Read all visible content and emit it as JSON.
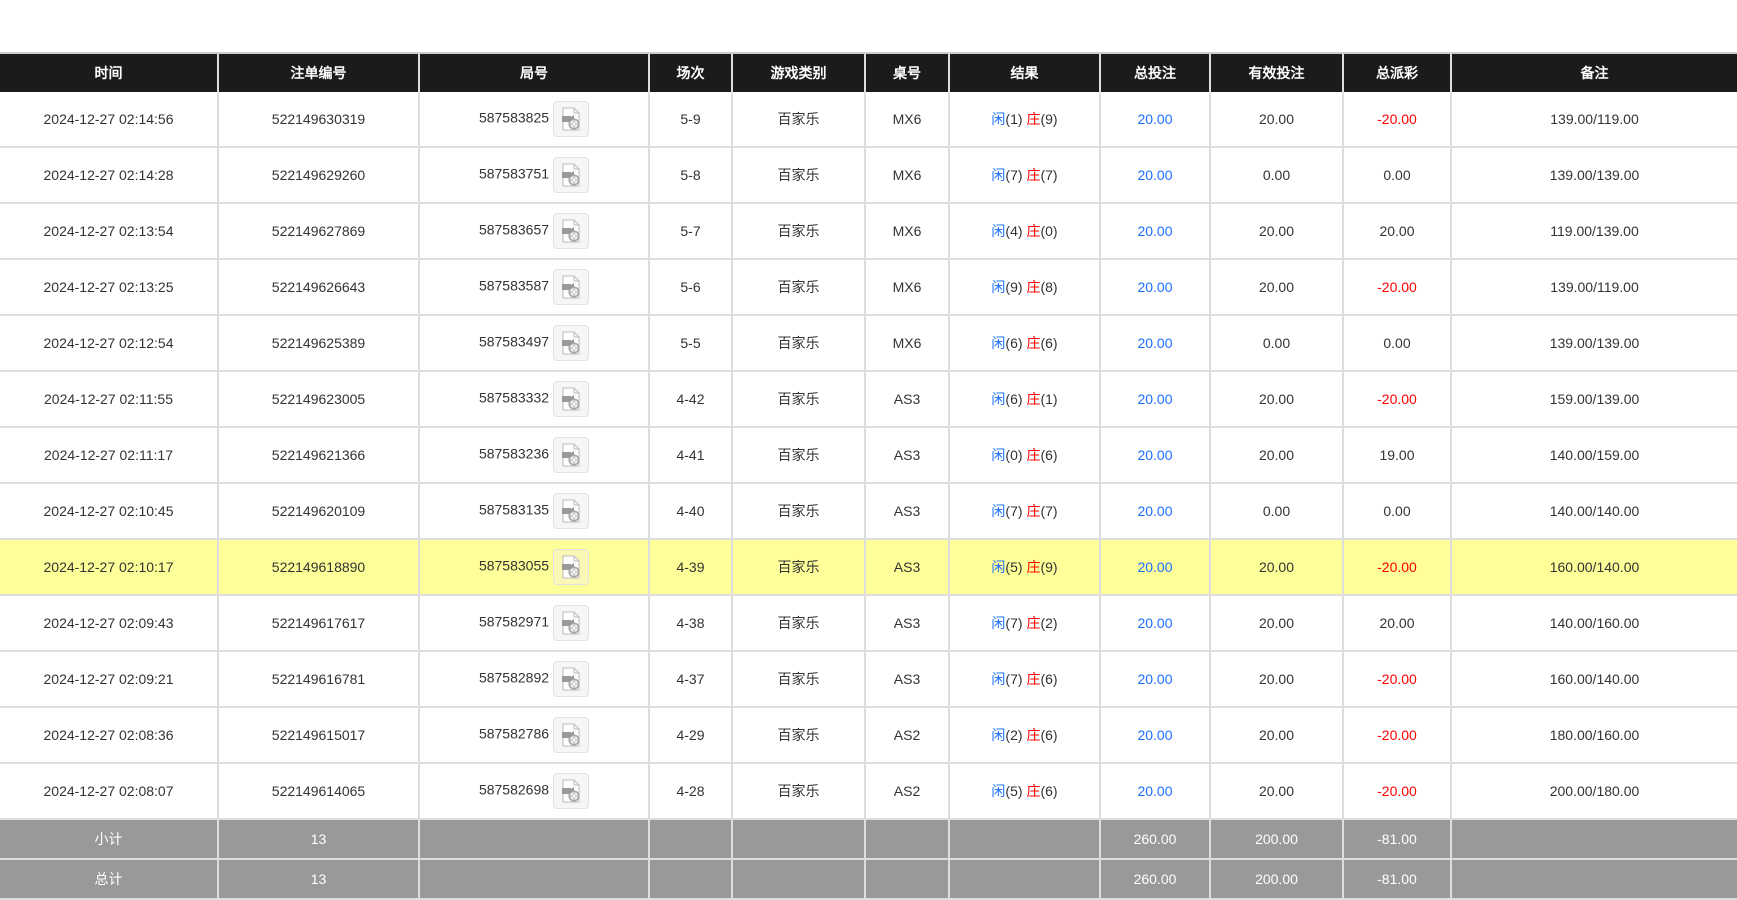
{
  "columns": [
    "时间",
    "注单编号",
    "局号",
    "场次",
    "游戏类别",
    "桌号",
    "结果",
    "总投注",
    "有效投注",
    "总派彩",
    "备注"
  ],
  "colors": {
    "header_bg": "#1b1b1b",
    "highlight": "#ffff99",
    "summary_bg": "#999999",
    "blue": "#1a6fff",
    "red": "#ff0000"
  },
  "icon": "video-file-icon",
  "result_labels": {
    "player": "闲",
    "banker": "庄"
  },
  "highlighted_row": 8,
  "rows": [
    {
      "time": "2024-12-27 02:14:56",
      "bet_id": "522149630319",
      "round": "587583825",
      "shoe": "5-9",
      "game": "百家乐",
      "table": "MX6",
      "player": "(1)",
      "banker": "(9)",
      "total_bet": "20.00",
      "valid_bet": "20.00",
      "payout": "-20.00",
      "note": "139.00/119.00"
    },
    {
      "time": "2024-12-27 02:14:28",
      "bet_id": "522149629260",
      "round": "587583751",
      "shoe": "5-8",
      "game": "百家乐",
      "table": "MX6",
      "player": "(7)",
      "banker": "(7)",
      "total_bet": "20.00",
      "valid_bet": "0.00",
      "payout": "0.00",
      "note": "139.00/139.00"
    },
    {
      "time": "2024-12-27 02:13:54",
      "bet_id": "522149627869",
      "round": "587583657",
      "shoe": "5-7",
      "game": "百家乐",
      "table": "MX6",
      "player": "(4)",
      "banker": "(0)",
      "total_bet": "20.00",
      "valid_bet": "20.00",
      "payout": "20.00",
      "note": "119.00/139.00"
    },
    {
      "time": "2024-12-27 02:13:25",
      "bet_id": "522149626643",
      "round": "587583587",
      "shoe": "5-6",
      "game": "百家乐",
      "table": "MX6",
      "player": "(9)",
      "banker": "(8)",
      "total_bet": "20.00",
      "valid_bet": "20.00",
      "payout": "-20.00",
      "note": "139.00/119.00"
    },
    {
      "time": "2024-12-27 02:12:54",
      "bet_id": "522149625389",
      "round": "587583497",
      "shoe": "5-5",
      "game": "百家乐",
      "table": "MX6",
      "player": "(6)",
      "banker": "(6)",
      "total_bet": "20.00",
      "valid_bet": "0.00",
      "payout": "0.00",
      "note": "139.00/139.00"
    },
    {
      "time": "2024-12-27 02:11:55",
      "bet_id": "522149623005",
      "round": "587583332",
      "shoe": "4-42",
      "game": "百家乐",
      "table": "AS3",
      "player": "(6)",
      "banker": "(1)",
      "total_bet": "20.00",
      "valid_bet": "20.00",
      "payout": "-20.00",
      "note": "159.00/139.00"
    },
    {
      "time": "2024-12-27 02:11:17",
      "bet_id": "522149621366",
      "round": "587583236",
      "shoe": "4-41",
      "game": "百家乐",
      "table": "AS3",
      "player": "(0)",
      "banker": "(6)",
      "total_bet": "20.00",
      "valid_bet": "20.00",
      "payout": "19.00",
      "note": "140.00/159.00"
    },
    {
      "time": "2024-12-27 02:10:45",
      "bet_id": "522149620109",
      "round": "587583135",
      "shoe": "4-40",
      "game": "百家乐",
      "table": "AS3",
      "player": "(7)",
      "banker": "(7)",
      "total_bet": "20.00",
      "valid_bet": "0.00",
      "payout": "0.00",
      "note": "140.00/140.00"
    },
    {
      "time": "2024-12-27 02:10:17",
      "bet_id": "522149618890",
      "round": "587583055",
      "shoe": "4-39",
      "game": "百家乐",
      "table": "AS3",
      "player": "(5)",
      "banker": "(9)",
      "total_bet": "20.00",
      "valid_bet": "20.00",
      "payout": "-20.00",
      "note": "160.00/140.00"
    },
    {
      "time": "2024-12-27 02:09:43",
      "bet_id": "522149617617",
      "round": "587582971",
      "shoe": "4-38",
      "game": "百家乐",
      "table": "AS3",
      "player": "(7)",
      "banker": "(2)",
      "total_bet": "20.00",
      "valid_bet": "20.00",
      "payout": "20.00",
      "note": "140.00/160.00"
    },
    {
      "time": "2024-12-27 02:09:21",
      "bet_id": "522149616781",
      "round": "587582892",
      "shoe": "4-37",
      "game": "百家乐",
      "table": "AS3",
      "player": "(7)",
      "banker": "(6)",
      "total_bet": "20.00",
      "valid_bet": "20.00",
      "payout": "-20.00",
      "note": "160.00/140.00"
    },
    {
      "time": "2024-12-27 02:08:36",
      "bet_id": "522149615017",
      "round": "587582786",
      "shoe": "4-29",
      "game": "百家乐",
      "table": "AS2",
      "player": "(2)",
      "banker": "(6)",
      "total_bet": "20.00",
      "valid_bet": "20.00",
      "payout": "-20.00",
      "note": "180.00/160.00"
    },
    {
      "time": "2024-12-27 02:08:07",
      "bet_id": "522149614065",
      "round": "587582698",
      "shoe": "4-28",
      "game": "百家乐",
      "table": "AS2",
      "player": "(5)",
      "banker": "(6)",
      "total_bet": "20.00",
      "valid_bet": "20.00",
      "payout": "-20.00",
      "note": "200.00/180.00"
    }
  ],
  "summary": [
    {
      "label": "小计",
      "count": "13",
      "total_bet": "260.00",
      "valid_bet": "200.00",
      "payout": "-81.00"
    },
    {
      "label": "总计",
      "count": "13",
      "total_bet": "260.00",
      "valid_bet": "200.00",
      "payout": "-81.00"
    }
  ]
}
